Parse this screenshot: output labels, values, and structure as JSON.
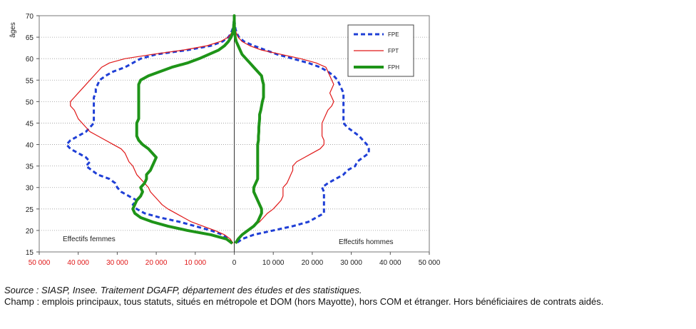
{
  "chart_data": {
    "type": "line",
    "ylabel": "âges",
    "ylim": [
      15,
      70
    ],
    "xlim": [
      -50000,
      50000
    ],
    "yticks": [
      "15",
      "20",
      "25",
      "30",
      "35",
      "40",
      "45",
      "50",
      "55",
      "60",
      "65",
      "70"
    ],
    "xticks_left": [
      "50 000",
      "40 000",
      "30 000",
      "20 000",
      "10 000"
    ],
    "xticks_zero": "0",
    "xticks_right": [
      "10 000",
      "20 000",
      "30 000",
      "40 000",
      "50 000"
    ],
    "annotation_left": "Effectifs femmes",
    "annotation_right": "Effectifs hommes",
    "grid": true,
    "legend_position": "top-right",
    "series": [
      {
        "name": "FPE",
        "color": "#1f3fd6",
        "dash": "dashed",
        "ages": [
          17,
          18,
          19,
          20,
          21,
          22,
          23,
          24,
          25,
          26,
          27,
          28,
          29,
          30,
          31,
          32,
          33,
          34,
          35,
          36,
          37,
          38,
          39,
          40,
          41,
          42,
          43,
          44,
          45,
          46,
          47,
          48,
          49,
          50,
          51,
          52,
          53,
          54,
          55,
          56,
          57,
          58,
          59,
          60,
          61,
          62,
          63,
          64,
          65,
          66,
          67,
          68,
          69,
          70
        ],
        "women": [
          -500,
          -1500,
          -3000,
          -6000,
          -10000,
          -14000,
          -19000,
          -23000,
          -25000,
          -26000,
          -25000,
          -27000,
          -29000,
          -30000,
          -30500,
          -32000,
          -35000,
          -36500,
          -38000,
          -37000,
          -38000,
          -40000,
          -42000,
          -43000,
          -42000,
          -40000,
          -38000,
          -37000,
          -36000,
          -36000,
          -36000,
          -36000,
          -36000,
          -36000,
          -36000,
          -35500,
          -35500,
          -35000,
          -34500,
          -33000,
          -31000,
          -28000,
          -26000,
          -24000,
          -20000,
          -12000,
          -6000,
          -3000,
          -1500,
          -800,
          -400,
          -200,
          -100,
          0
        ],
        "men": [
          500,
          2000,
          5000,
          10000,
          15000,
          19000,
          21000,
          23000,
          23000,
          23000,
          23000,
          23000,
          23000,
          22500,
          24000,
          26000,
          28000,
          29000,
          31000,
          31500,
          33000,
          34500,
          34500,
          34000,
          33000,
          32000,
          30500,
          29000,
          28000,
          28000,
          28000,
          28000,
          28000,
          28000,
          28000,
          28000,
          27500,
          27000,
          26500,
          25500,
          24000,
          22000,
          19000,
          15000,
          11000,
          8000,
          5000,
          2500,
          1200,
          600,
          300,
          150,
          50,
          0
        ]
      },
      {
        "name": "FPT",
        "color": "#e01818",
        "dash": "solid",
        "ages": [
          17,
          18,
          19,
          20,
          21,
          22,
          23,
          24,
          25,
          26,
          27,
          28,
          29,
          30,
          31,
          32,
          33,
          34,
          35,
          36,
          37,
          38,
          39,
          40,
          41,
          42,
          43,
          44,
          45,
          46,
          47,
          48,
          49,
          50,
          51,
          52,
          53,
          54,
          55,
          56,
          57,
          58,
          59,
          60,
          61,
          62,
          63,
          64,
          65,
          66,
          67,
          68,
          69,
          70
        ],
        "women": [
          -300,
          -1000,
          -2500,
          -5000,
          -8000,
          -11000,
          -13000,
          -15000,
          -17000,
          -18500,
          -19500,
          -20500,
          -21500,
          -22000,
          -23000,
          -24000,
          -25000,
          -25500,
          -26000,
          -27000,
          -27500,
          -28000,
          -29000,
          -31000,
          -33000,
          -35000,
          -37000,
          -38000,
          -39000,
          -40000,
          -40500,
          -41000,
          -42000,
          -42000,
          -41000,
          -40000,
          -39000,
          -38000,
          -37000,
          -36000,
          -35000,
          -34000,
          -32000,
          -28000,
          -21000,
          -13000,
          -7000,
          -3500,
          -1500,
          -700,
          -300,
          -150,
          -50,
          0
        ],
        "men": [
          300,
          1000,
          2000,
          3500,
          5000,
          6500,
          7500,
          8500,
          10000,
          11000,
          12000,
          12500,
          12500,
          12500,
          13500,
          14000,
          14500,
          15000,
          15000,
          16000,
          18000,
          20000,
          22000,
          23000,
          23000,
          22500,
          22500,
          22500,
          22500,
          23000,
          23500,
          24000,
          25000,
          25500,
          25000,
          24500,
          25000,
          25500,
          25000,
          24500,
          24000,
          23500,
          21000,
          17000,
          12000,
          7000,
          4000,
          2000,
          1000,
          500,
          200,
          100,
          50,
          0
        ]
      },
      {
        "name": "FPH",
        "color": "#1e9418",
        "dash": "solid",
        "ages": [
          17,
          18,
          19,
          20,
          21,
          22,
          23,
          24,
          25,
          26,
          27,
          28,
          29,
          30,
          31,
          32,
          33,
          34,
          35,
          36,
          37,
          38,
          39,
          40,
          41,
          42,
          43,
          44,
          45,
          46,
          47,
          48,
          49,
          50,
          51,
          52,
          53,
          54,
          55,
          56,
          57,
          58,
          59,
          60,
          61,
          62,
          63,
          64,
          65,
          66,
          67,
          68,
          69,
          70
        ],
        "women": [
          -500,
          -2000,
          -6000,
          -12000,
          -17000,
          -21000,
          -24000,
          -25500,
          -26000,
          -25500,
          -25000,
          -24000,
          -23500,
          -24000,
          -23000,
          -22500,
          -22500,
          -21500,
          -21000,
          -20500,
          -20000,
          -21000,
          -22000,
          -23500,
          -24500,
          -25000,
          -25000,
          -25000,
          -25000,
          -24500,
          -24500,
          -24500,
          -24500,
          -24500,
          -24500,
          -24500,
          -24500,
          -24500,
          -24000,
          -22000,
          -19000,
          -16000,
          -12000,
          -9000,
          -6500,
          -4000,
          -2500,
          -1500,
          -800,
          -400,
          -200,
          -100,
          0,
          0
        ],
        "men": [
          300,
          1000,
          2000,
          3500,
          5000,
          6000,
          6500,
          7000,
          7000,
          6500,
          6000,
          5500,
          5000,
          5000,
          5500,
          6000,
          6000,
          6000,
          6000,
          6000,
          6000,
          6000,
          6000,
          6000,
          6200,
          6200,
          6300,
          6300,
          6400,
          6500,
          6500,
          6800,
          7000,
          7200,
          7500,
          7500,
          7500,
          7500,
          7200,
          7000,
          6000,
          5000,
          4000,
          3000,
          2000,
          1500,
          1000,
          500,
          250,
          120,
          60,
          30,
          0,
          0
        ]
      }
    ]
  },
  "footer": {
    "source": "Source : SIASP, Insee. Traitement DGAFP, département des études et des statistiques.",
    "champ": "Champ : emplois principaux, tous statuts, situés en métropole et DOM (hors Mayotte), hors COM et étranger. Hors bénéficiaires de contrats aidés."
  }
}
